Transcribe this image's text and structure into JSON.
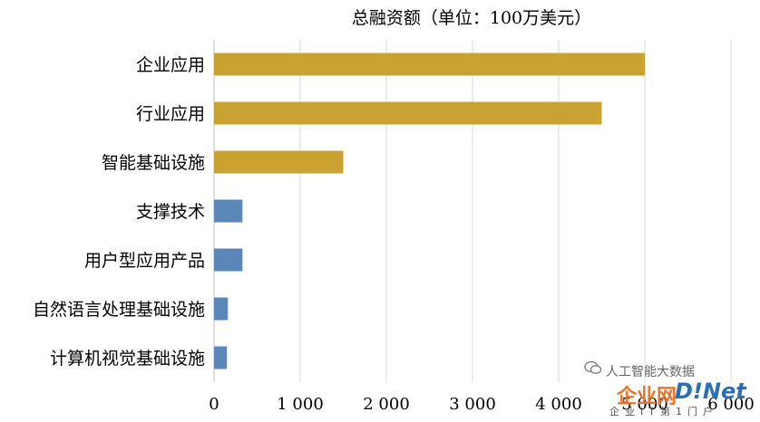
{
  "chart_data": {
    "type": "bar",
    "orientation": "horizontal",
    "title": "总融资额（单位：100万美元）",
    "categories": [
      "企业应用",
      "行业应用",
      "智能基础设施",
      "支撑技术",
      "用户型应用产品",
      "自然语言处理基础设施",
      "计算机视觉基础设施"
    ],
    "values": [
      5000,
      4500,
      1500,
      330,
      330,
      160,
      150
    ],
    "colors": [
      "#c9a232",
      "#c9a232",
      "#c9a232",
      "#5b86b8",
      "#5b86b8",
      "#5b86b8",
      "#5b86b8"
    ],
    "xlim": [
      0,
      6000
    ],
    "xticks": [
      0,
      1000,
      2000,
      3000,
      4000,
      5000,
      6000
    ],
    "xtick_labels": [
      "0",
      "1 000",
      "2 000",
      "3 000",
      "4 000",
      "5 000",
      "6 000"
    ],
    "grid": true
  },
  "watermark": {
    "text": "人工智能大数据",
    "logo_a": "企业网",
    "logo_b": "D!Net",
    "sub": "企业IT第1门户"
  }
}
